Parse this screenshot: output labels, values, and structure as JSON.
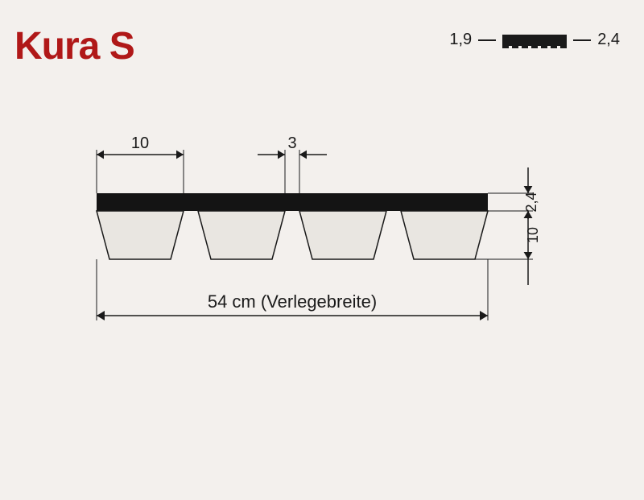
{
  "title": "Kura S",
  "legend": {
    "left_value": "1,9",
    "right_value": "2,4"
  },
  "diagram": {
    "top_layer_color": "#141414",
    "trapezoid_fill": "#e9e6e1",
    "trapezoid_stroke": "#1a1a1a",
    "background": "#f3f0ed",
    "dimensions": {
      "rib_width": "10",
      "gap": "3",
      "top_thickness": "2,4",
      "rib_height": "10",
      "total_width_label": "54 cm (Verlegebreite)"
    },
    "geometry": {
      "n_ribs": 4,
      "rib_top_w": 108,
      "gap_w": 18,
      "top_h": 22,
      "rib_h": 60,
      "taper": 16
    }
  }
}
